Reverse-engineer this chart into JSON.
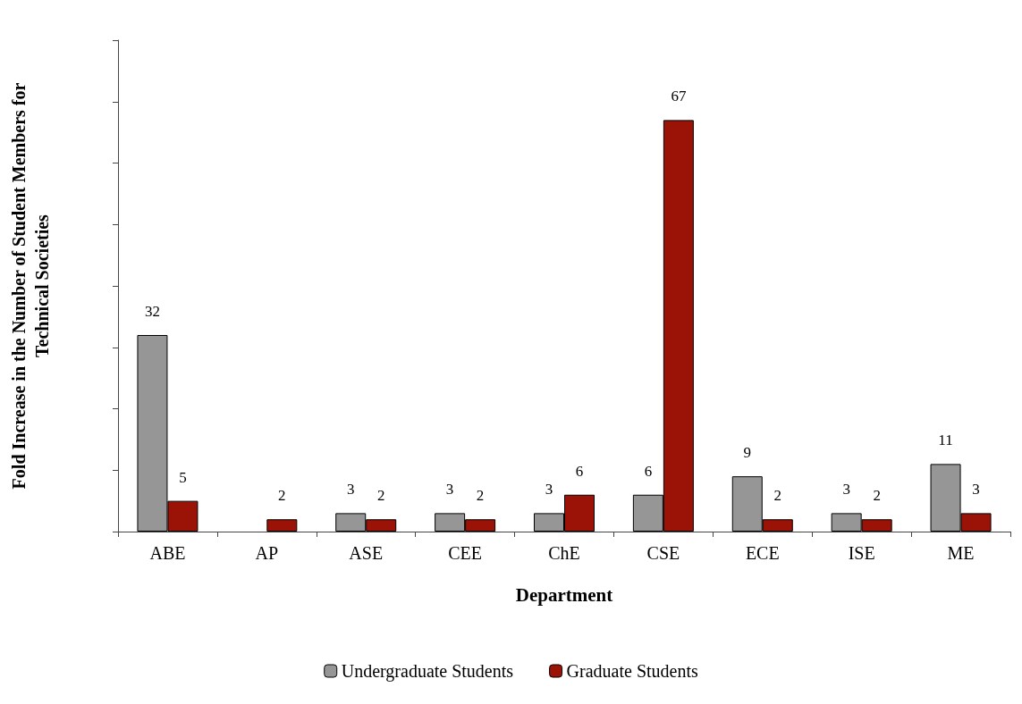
{
  "chart_data": {
    "type": "bar",
    "xlabel": "Department",
    "ylabel": "Fold Increase in the Number of Student Members for\nTechnical Societies",
    "categories": [
      "ABE",
      "AP",
      "ASE",
      "CEE",
      "ChE",
      "CSE",
      "ECE",
      "ISE",
      "ME"
    ],
    "series": [
      {
        "name": "Undergraduate Students",
        "color": "#969696",
        "values": [
          32,
          null,
          3,
          3,
          3,
          6,
          9,
          3,
          11
        ]
      },
      {
        "name": "Graduate Students",
        "color": "#9b1306",
        "values": [
          5,
          2,
          2,
          2,
          6,
          67,
          2,
          2,
          3
        ]
      }
    ],
    "ylim": [
      0,
      80
    ],
    "yticks": [
      {
        "value": 0,
        "label": null
      },
      {
        "value": 10,
        "label": null
      },
      {
        "value": 20,
        "label": null
      },
      {
        "value": 30,
        "label": null
      },
      {
        "value": 40,
        "label": null
      },
      {
        "value": 50,
        "label": null
      },
      {
        "value": 60,
        "label": null
      },
      {
        "value": 70,
        "label": null
      },
      {
        "value": 80,
        "label": null
      }
    ],
    "tick_labels": "x",
    "data_labels": true,
    "grid": false,
    "legend": "bottom"
  }
}
